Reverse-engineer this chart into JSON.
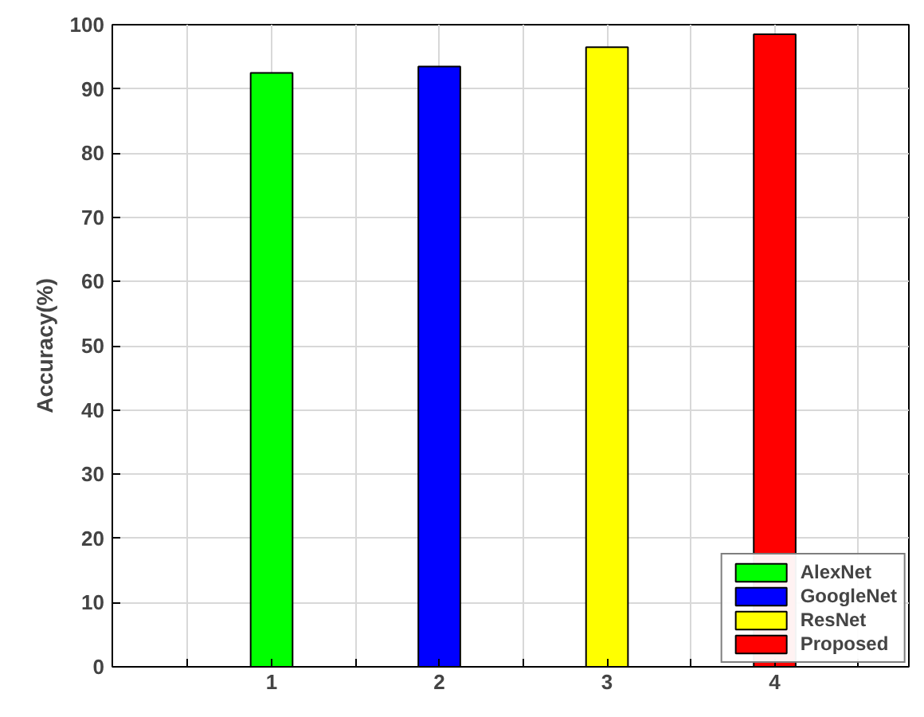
{
  "chart_data": {
    "type": "bar",
    "ylabel": "Accuracy(%)",
    "x": [
      1,
      2,
      3,
      4
    ],
    "series": [
      {
        "name": "AlexNet",
        "color": "#00ff00",
        "values": [
          92.5,
          null,
          null,
          null
        ]
      },
      {
        "name": "GoogleNet",
        "color": "#0000ff",
        "values": [
          null,
          93.5,
          null,
          null
        ]
      },
      {
        "name": "ResNet",
        "color": "#ffff00",
        "values": [
          null,
          null,
          96.5,
          null
        ]
      },
      {
        "name": "Proposed",
        "color": "#ff0000",
        "values": [
          null,
          null,
          null,
          98.5
        ]
      }
    ],
    "xlim": [
      0.05,
      4.8
    ],
    "xticks": [
      {
        "value": 0.5,
        "label": null
      },
      1,
      {
        "value": 1.5,
        "label": null
      },
      2,
      {
        "value": 2.5,
        "label": null
      },
      3,
      {
        "value": 3.5,
        "label": null
      },
      4,
      {
        "value": 4.5,
        "label": null
      }
    ],
    "ylim": [
      0,
      100
    ],
    "yticks": [
      0,
      10,
      20,
      30,
      40,
      50,
      60,
      70,
      80,
      90,
      100
    ],
    "grid": true,
    "legend": "bottom right"
  }
}
